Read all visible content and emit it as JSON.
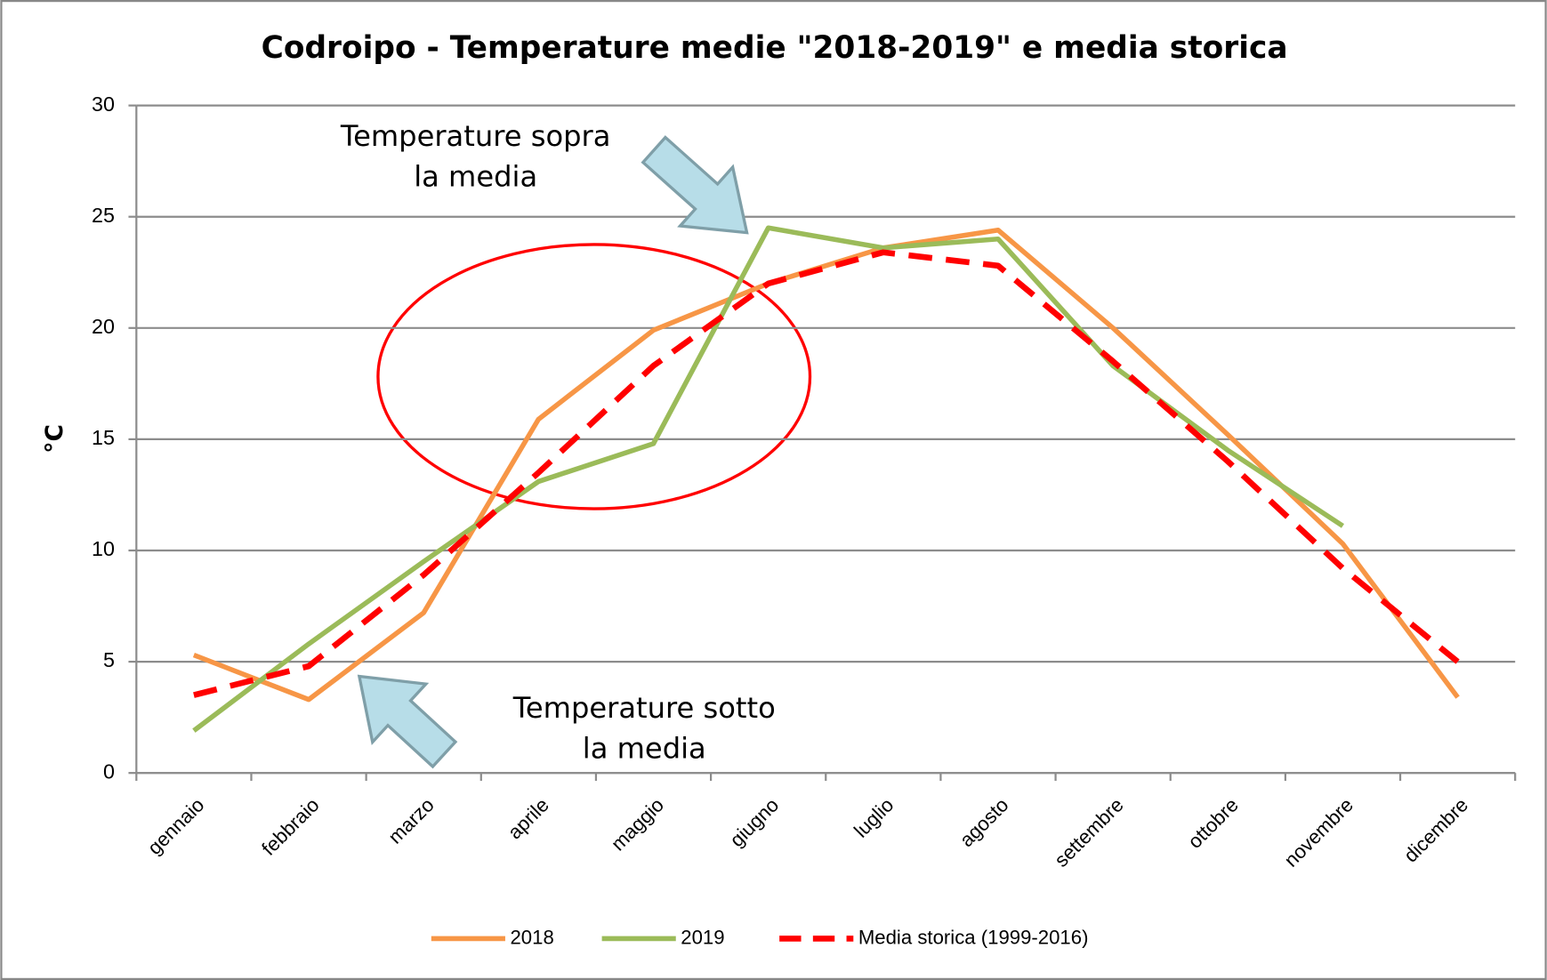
{
  "chart_data": {
    "type": "line",
    "title": "Codroipo -  Temperature medie \"2018-2019\" e media storica",
    "ylabel": "°C",
    "categories": [
      "gennaio",
      "febbraio",
      "marzo",
      "aprile",
      "maggio",
      "giugno",
      "luglio",
      "agosto",
      "settembre",
      "ottobre",
      "novembre",
      "dicembre"
    ],
    "series": [
      {
        "name": "2018",
        "color": "#f79646",
        "dashed": false,
        "values": [
          5.3,
          3.3,
          7.2,
          15.9,
          19.9,
          22.0,
          23.6,
          24.4,
          20.0,
          15.2,
          10.3,
          3.4
        ]
      },
      {
        "name": "2019",
        "color": "#9bbb59",
        "dashed": false,
        "values": [
          1.9,
          5.8,
          9.5,
          13.1,
          14.8,
          24.5,
          23.6,
          24.0,
          18.3,
          14.5,
          11.1,
          null
        ]
      },
      {
        "name": "Media storica (1999-2016)",
        "color": "#ff0000",
        "dashed": true,
        "values": [
          3.5,
          4.8,
          8.9,
          13.5,
          18.3,
          22.0,
          23.4,
          22.8,
          18.5,
          14.0,
          9.2,
          5.0
        ]
      }
    ],
    "ylim": [
      0,
      30
    ],
    "yticks": [
      0,
      5,
      10,
      15,
      20,
      25,
      30
    ],
    "grid": true,
    "legend": "bottom",
    "annotations": [
      "Temperature sopra",
      "la media",
      "Temperature sotto",
      "la media"
    ]
  }
}
